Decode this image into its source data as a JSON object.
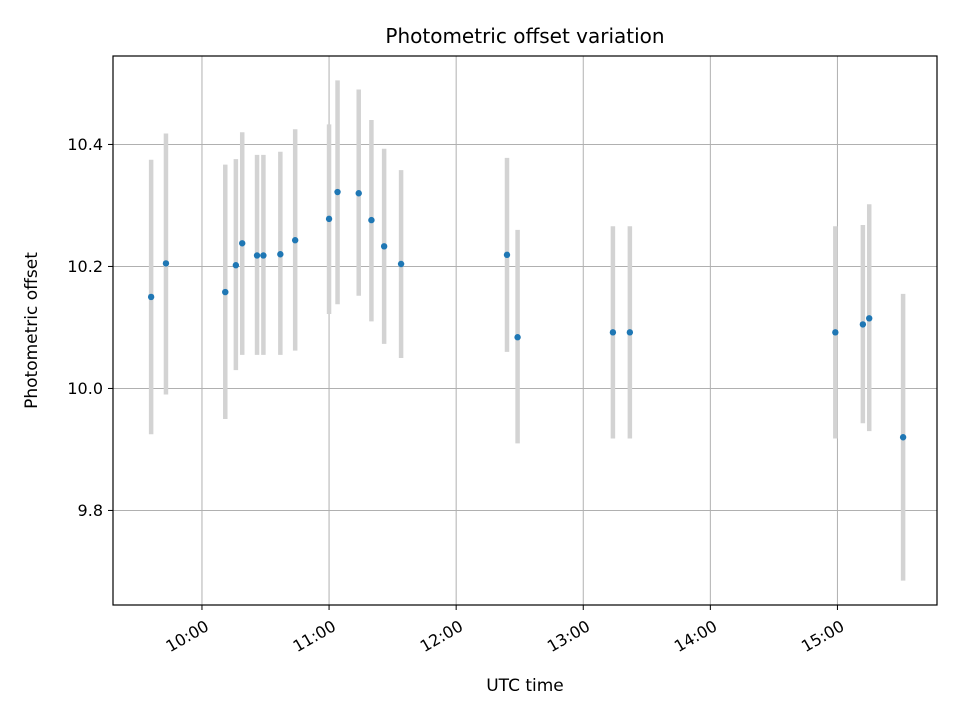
{
  "chart_data": {
    "type": "scatter",
    "title": "Photometric offset variation",
    "xlabel": "UTC time",
    "ylabel": "Photometric offset",
    "x_axis_kind": "time (HH:MM)",
    "xlim": [
      "09:18",
      "15:47"
    ],
    "ylim": [
      9.645,
      10.545
    ],
    "xticks": [
      "10:00",
      "11:00",
      "12:00",
      "13:00",
      "14:00",
      "15:00"
    ],
    "yticks": [
      9.8,
      10.0,
      10.2,
      10.4
    ],
    "grid": true,
    "legend": "none",
    "colors": {
      "point": "#1f77b4",
      "errorbar": "#d3d3d3",
      "grid": "#b0b0b0"
    },
    "points": [
      {
        "x": "09:36",
        "y": 10.15,
        "err_low": 9.925,
        "err_high": 10.375
      },
      {
        "x": "09:43",
        "y": 10.205,
        "err_low": 9.99,
        "err_high": 10.418
      },
      {
        "x": "10:11",
        "y": 10.158,
        "err_low": 9.95,
        "err_high": 10.367
      },
      {
        "x": "10:16",
        "y": 10.202,
        "err_low": 10.03,
        "err_high": 10.376
      },
      {
        "x": "10:19",
        "y": 10.238,
        "err_low": 10.055,
        "err_high": 10.42
      },
      {
        "x": "10:26",
        "y": 10.218,
        "err_low": 10.055,
        "err_high": 10.383
      },
      {
        "x": "10:29",
        "y": 10.218,
        "err_low": 10.055,
        "err_high": 10.383
      },
      {
        "x": "10:37",
        "y": 10.22,
        "err_low": 10.055,
        "err_high": 10.388
      },
      {
        "x": "10:44",
        "y": 10.243,
        "err_low": 10.062,
        "err_high": 10.425
      },
      {
        "x": "11:00",
        "y": 10.278,
        "err_low": 10.122,
        "err_high": 10.433
      },
      {
        "x": "11:04",
        "y": 10.322,
        "err_low": 10.138,
        "err_high": 10.505
      },
      {
        "x": "11:14",
        "y": 10.32,
        "err_low": 10.152,
        "err_high": 10.49
      },
      {
        "x": "11:20",
        "y": 10.276,
        "err_low": 10.11,
        "err_high": 10.44
      },
      {
        "x": "11:26",
        "y": 10.233,
        "err_low": 10.073,
        "err_high": 10.393
      },
      {
        "x": "11:34",
        "y": 10.204,
        "err_low": 10.05,
        "err_high": 10.358
      },
      {
        "x": "12:24",
        "y": 10.219,
        "err_low": 10.06,
        "err_high": 10.378
      },
      {
        "x": "12:29",
        "y": 10.084,
        "err_low": 9.91,
        "err_high": 10.26
      },
      {
        "x": "13:14",
        "y": 10.092,
        "err_low": 9.918,
        "err_high": 10.266
      },
      {
        "x": "13:22",
        "y": 10.092,
        "err_low": 9.918,
        "err_high": 10.266
      },
      {
        "x": "14:59",
        "y": 10.092,
        "err_low": 9.918,
        "err_high": 10.266
      },
      {
        "x": "15:12",
        "y": 10.105,
        "err_low": 9.943,
        "err_high": 10.268
      },
      {
        "x": "15:15",
        "y": 10.115,
        "err_low": 9.93,
        "err_high": 10.302
      },
      {
        "x": "15:31",
        "y": 9.92,
        "err_low": 9.685,
        "err_high": 10.155
      }
    ]
  }
}
